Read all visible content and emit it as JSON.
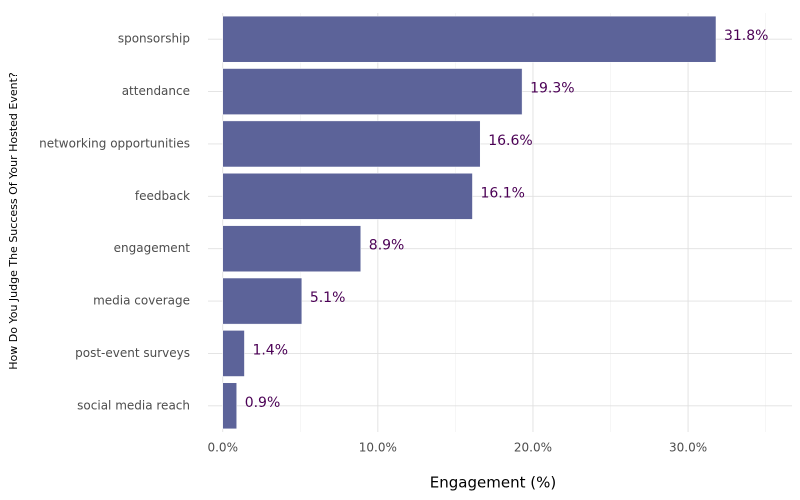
{
  "chart_data": {
    "type": "bar",
    "orientation": "horizontal",
    "x_label": "Engagement (%)",
    "y_label": "How Do You Judge The Success Of Your Hosted Event?",
    "categories": [
      "sponsorship",
      "attendance",
      "networking opportunities",
      "feedback",
      "engagement",
      "media coverage",
      "post-event surveys",
      "social media reach"
    ],
    "values": [
      31.8,
      19.3,
      16.6,
      16.1,
      8.9,
      5.1,
      1.4,
      0.9
    ],
    "value_labels": [
      "31.8%",
      "19.3%",
      "16.6%",
      "16.1%",
      "8.9%",
      "5.1%",
      "1.4%",
      "0.9%"
    ],
    "color": "#5c6399",
    "label_color": "#4b0055",
    "xlim": [
      -0.95,
      36.7
    ],
    "xticks": [
      {
        "value": 0,
        "label": "0.0%"
      },
      {
        "value": 10,
        "label": "10.0%"
      },
      {
        "value": 20,
        "label": "20.0%"
      },
      {
        "value": 30,
        "label": "30.0%"
      }
    ],
    "minor_xticks": [
      5,
      15,
      25,
      35
    ],
    "grid": true
  }
}
